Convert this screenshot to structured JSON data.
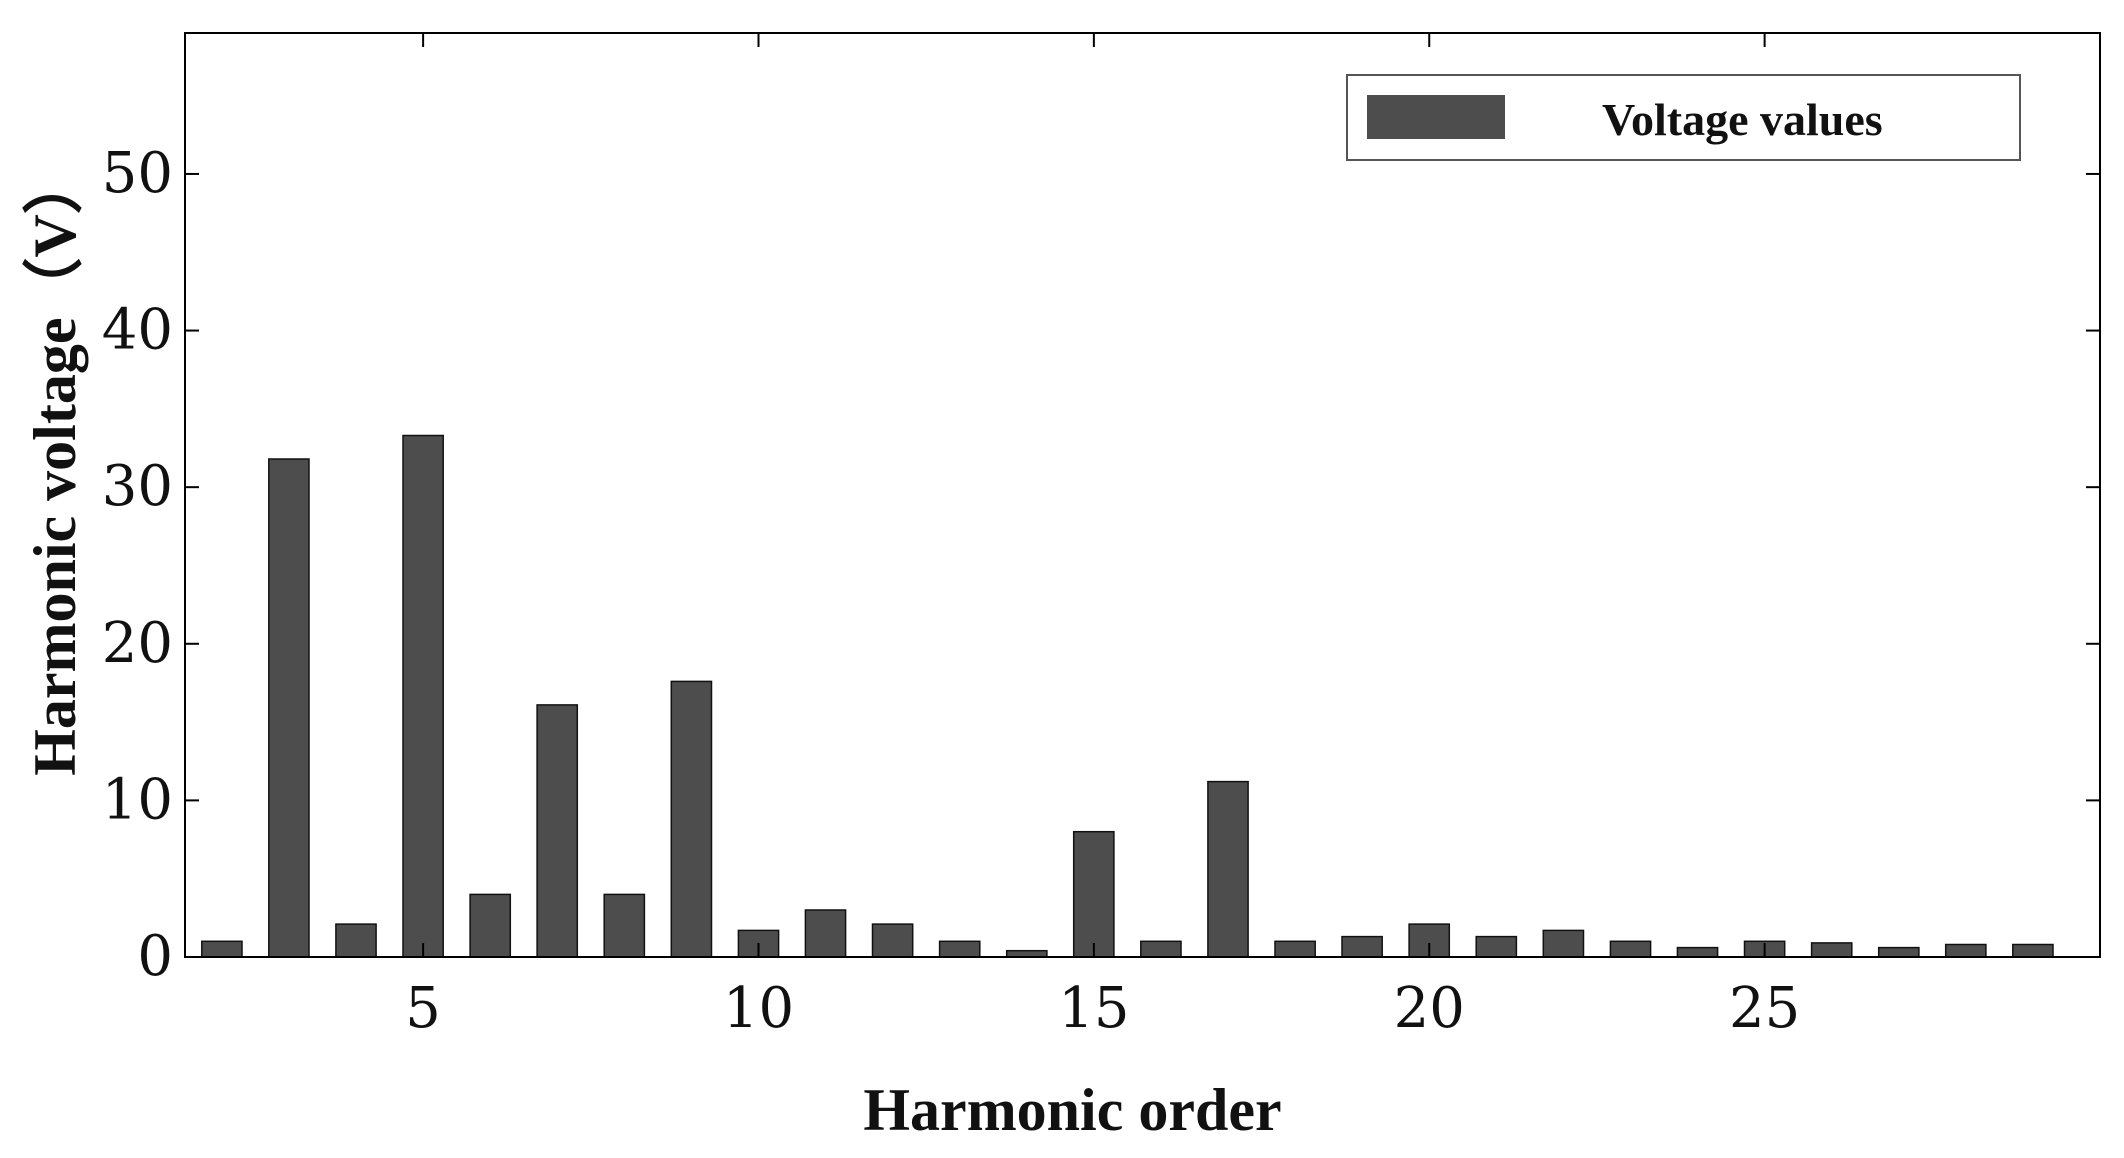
{
  "chart_data": {
    "type": "bar",
    "title": "",
    "xlabel": "Harmonic order",
    "ylabel": "Harmonic voltage（V）",
    "x": [
      2,
      3,
      4,
      5,
      6,
      7,
      8,
      9,
      10,
      11,
      12,
      13,
      14,
      15,
      16,
      17,
      18,
      19,
      20,
      21,
      22,
      23,
      24,
      25,
      26,
      27,
      28,
      29
    ],
    "series": [
      {
        "name": "Voltage values",
        "color": "#4d4d4d",
        "values": [
          1.0,
          31.8,
          2.1,
          33.3,
          4.0,
          16.1,
          4.0,
          17.6,
          1.7,
          3.0,
          2.1,
          1.0,
          0.4,
          8.0,
          1.0,
          11.2,
          1.0,
          1.3,
          2.1,
          1.3,
          1.7,
          1.0,
          0.6,
          1.0,
          0.9,
          0.6,
          0.8,
          0.8
        ]
      }
    ],
    "xlim": [
      1.45,
      30.0
    ],
    "ylim": [
      0,
      59
    ],
    "xticks": [
      5,
      10,
      15,
      20,
      25
    ],
    "xtick_labels": [
      "5",
      "10",
      "15",
      "20",
      "25"
    ],
    "yticks": [
      0,
      10,
      20,
      30,
      40,
      50
    ],
    "ytick_labels": [
      "0",
      "10",
      "20",
      "30",
      "40",
      "50"
    ],
    "grid": false,
    "legend": {
      "position": "top-right",
      "label": "Voltage values"
    }
  }
}
